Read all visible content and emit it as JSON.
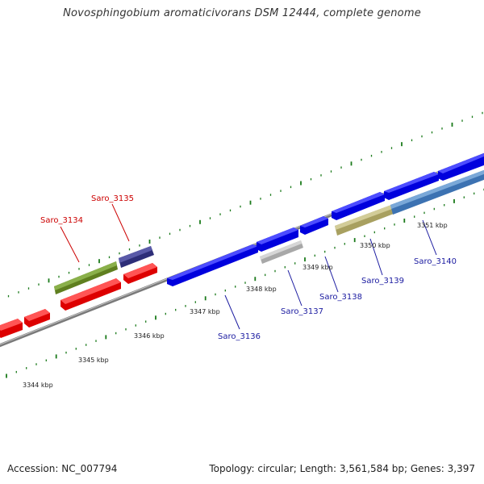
{
  "title": "Novosphingobium aromaticivorans DSM 12444, complete genome",
  "footer": {
    "accession": "Accession: NC_007794",
    "summary": "Topology: circular; Length: 3,561,584 bp; Genes: 3,397"
  },
  "colors": {
    "forward_gene": "#0000ee",
    "reverse_gene": "#ff0000",
    "backbone": "#888888",
    "ticks": "#1a7a1a",
    "label_blue": "#1a1aa0",
    "label_red": "#cc0000"
  },
  "ticks": [
    {
      "kbp": 3344,
      "label": "3344 kbp"
    },
    {
      "kbp": 3345,
      "label": "3345 kbp"
    },
    {
      "kbp": 3346,
      "label": "3346 kbp"
    },
    {
      "kbp": 3347,
      "label": "3347 kbp"
    },
    {
      "kbp": 3348,
      "label": "3348 kbp"
    },
    {
      "kbp": 3349,
      "label": "3349 kbp"
    },
    {
      "kbp": 3350,
      "label": "3350 kbp"
    },
    {
      "kbp": 3351,
      "label": "3351 kbp"
    }
  ],
  "genes": [
    {
      "name": "Saro_3134",
      "strand": "reverse",
      "color": "#6b8e23"
    },
    {
      "name": "Saro_3135",
      "strand": "reverse",
      "color": "#3a3a8a"
    },
    {
      "name": "Saro_3136",
      "strand": "forward",
      "color": "#0000ee"
    },
    {
      "name": "Saro_3137",
      "strand": "forward",
      "color": "#bdbdbd"
    },
    {
      "name": "Saro_3138",
      "strand": "forward",
      "color": "#0000ee"
    },
    {
      "name": "Saro_3139",
      "strand": "forward",
      "color": "#b8b070"
    },
    {
      "name": "Saro_3140",
      "strand": "forward",
      "color": "#4a80c0"
    }
  ]
}
